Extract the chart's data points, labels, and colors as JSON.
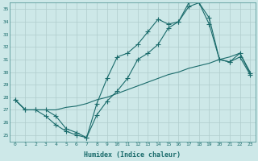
{
  "xlabel": "Humidex (Indice chaleur)",
  "background_color": "#cde8e8",
  "grid_color": "#b0cccc",
  "line_color": "#1a6b6b",
  "spine_color": "#5a9a9a",
  "xlim": [
    -0.5,
    23.5
  ],
  "ylim": [
    24.5,
    35.5
  ],
  "xticks": [
    0,
    1,
    2,
    3,
    4,
    5,
    6,
    7,
    8,
    9,
    10,
    11,
    12,
    13,
    14,
    15,
    16,
    17,
    18,
    19,
    20,
    21,
    22,
    23
  ],
  "yticks": [
    25,
    26,
    27,
    28,
    29,
    30,
    31,
    32,
    33,
    34,
    35
  ],
  "line1_x": [
    0,
    1,
    2,
    3,
    4,
    5,
    6,
    7,
    8,
    9,
    10,
    11,
    12,
    13,
    14,
    15,
    16,
    17,
    18,
    19,
    20,
    21,
    22,
    23
  ],
  "line1_y": [
    27.8,
    27.0,
    27.0,
    26.5,
    25.8,
    25.3,
    25.0,
    24.8,
    26.6,
    27.7,
    28.5,
    29.5,
    31.0,
    31.5,
    32.2,
    33.5,
    34.0,
    35.2,
    35.5,
    34.3,
    31.0,
    30.8,
    31.5,
    29.9
  ],
  "line2_x": [
    0,
    1,
    2,
    3,
    4,
    5,
    6,
    7,
    8,
    9,
    10,
    11,
    12,
    13,
    14,
    15,
    16,
    17,
    18,
    19,
    20,
    21,
    22,
    23
  ],
  "line2_y": [
    27.8,
    27.0,
    27.0,
    27.0,
    26.5,
    25.5,
    25.2,
    24.8,
    27.5,
    29.5,
    31.2,
    31.5,
    32.2,
    33.2,
    34.2,
    33.8,
    34.0,
    35.5,
    35.5,
    33.8,
    31.0,
    30.8,
    31.2,
    29.8
  ],
  "line3_x": [
    0,
    1,
    2,
    3,
    4,
    5,
    6,
    7,
    8,
    9,
    10,
    11,
    12,
    13,
    14,
    15,
    16,
    17,
    18,
    19,
    20,
    21,
    22,
    23
  ],
  "line3_y": [
    27.8,
    27.0,
    27.0,
    27.0,
    27.0,
    27.2,
    27.3,
    27.5,
    27.8,
    28.0,
    28.3,
    28.6,
    28.9,
    29.2,
    29.5,
    29.8,
    30.0,
    30.3,
    30.5,
    30.7,
    31.0,
    31.2,
    31.5,
    30.0
  ]
}
